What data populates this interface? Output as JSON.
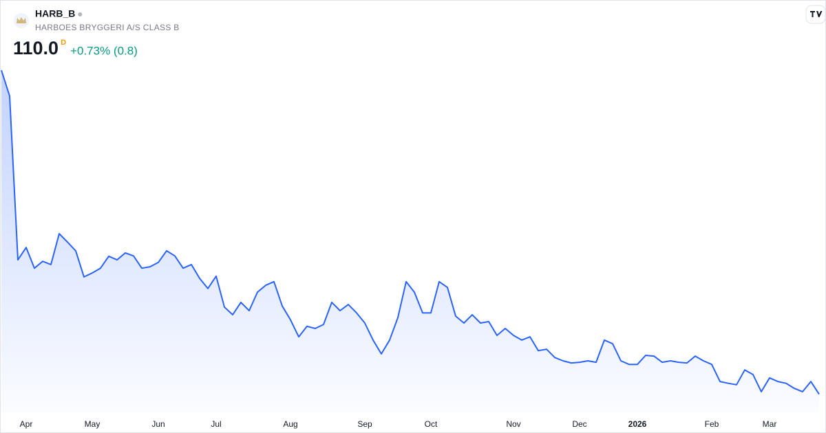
{
  "chart_data": {
    "type": "area",
    "title": "HARB_B",
    "subtitle": "HARBOES BRYGGERI A/S CLASS B",
    "price": "110.0",
    "interval": "D",
    "change": "+0.73% (0.8)",
    "color": "#2962ff",
    "ylim": [
      105,
      200
    ],
    "categories": [
      null,
      null,
      null,
      "Apr",
      null,
      null,
      null,
      null,
      null,
      null,
      null,
      "May",
      null,
      null,
      null,
      null,
      null,
      null,
      null,
      "Jun",
      null,
      null,
      null,
      null,
      null,
      null,
      "Jul",
      null,
      null,
      null,
      null,
      null,
      null,
      null,
      null,
      "Aug",
      null,
      null,
      null,
      null,
      null,
      null,
      null,
      null,
      "Sep",
      null,
      null,
      null,
      null,
      null,
      null,
      null,
      "Oct",
      null,
      null,
      null,
      null,
      null,
      null,
      null,
      null,
      null,
      "Nov",
      null,
      null,
      null,
      null,
      null,
      null,
      null,
      "Dec",
      null,
      null,
      null,
      null,
      null,
      null,
      "2026",
      null,
      null,
      null,
      null,
      null,
      null,
      null,
      null,
      "Feb",
      null,
      null,
      null,
      null,
      null,
      null,
      "Mar",
      null,
      null,
      null,
      null,
      null,
      null
    ],
    "values": [
      199.2,
      192.1,
      147.0,
      150.4,
      144.7,
      146.6,
      145.7,
      154.2,
      151.9,
      149.5,
      142.3,
      143.4,
      144.7,
      148.0,
      147.0,
      148.9,
      148.1,
      144.7,
      145.1,
      146.3,
      149.5,
      148.1,
      144.7,
      145.7,
      141.9,
      139.1,
      142.5,
      134.0,
      131.9,
      135.3,
      133.0,
      138.1,
      140.0,
      141.0,
      134.3,
      130.5,
      125.8,
      128.7,
      128.1,
      129.2,
      135.3,
      133.0,
      134.7,
      132.4,
      129.6,
      124.9,
      121.1,
      124.9,
      131.1,
      141.0,
      138.1,
      132.4,
      132.4,
      141.0,
      139.4,
      131.5,
      129.6,
      131.9,
      129.6,
      130.0,
      126.2,
      128.1,
      126.2,
      124.9,
      125.8,
      122.0,
      122.4,
      120.1,
      119.2,
      118.6,
      118.8,
      119.2,
      118.8,
      124.9,
      123.9,
      119.2,
      118.2,
      118.2,
      120.7,
      120.5,
      118.8,
      119.2,
      118.8,
      118.6,
      120.5,
      119.2,
      118.2,
      113.5,
      113.0,
      112.6,
      116.7,
      115.4,
      110.7,
      114.5,
      113.5,
      113.0,
      111.6,
      110.7,
      113.5,
      110.0
    ]
  }
}
